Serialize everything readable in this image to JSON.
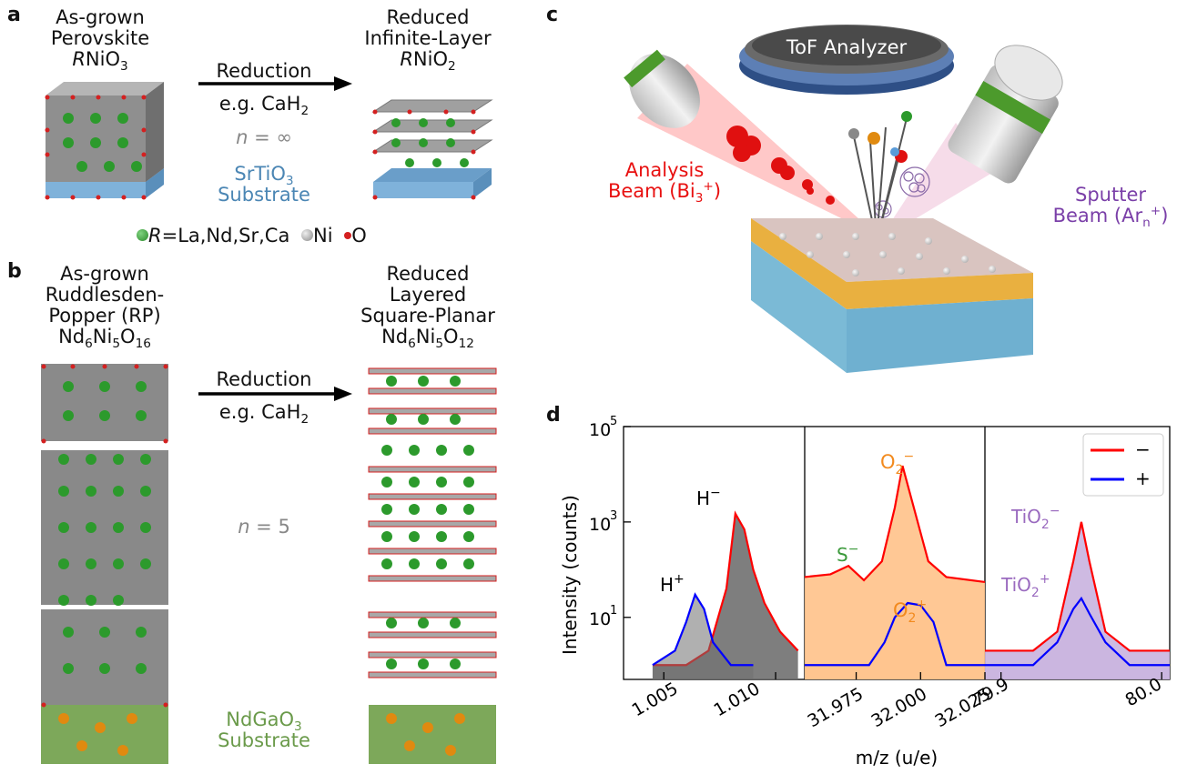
{
  "panel_a": {
    "label": "a",
    "as_grown": [
      "As-grown",
      "Perovskite"
    ],
    "as_grown_formula": {
      "r": "R",
      "main": "NiO",
      "sub": "3"
    },
    "reduced": [
      "Reduced",
      "Infinite-Layer"
    ],
    "reduced_formula": {
      "r": "R",
      "main": "NiO",
      "sub": "2"
    },
    "arrow_top": "Reduction",
    "arrow_bottom": {
      "main": "e.g. CaH",
      "sub": "2"
    },
    "n_label": {
      "n": "n",
      "rest": " = ∞"
    },
    "substrate": {
      "line1_main": "SrTiO",
      "line1_sub": "3",
      "line2": "Substrate"
    },
    "legend": {
      "r_item": "=La,Nd,Sr,Ca",
      "ni": "Ni",
      "o": "O",
      "r": "R"
    }
  },
  "panel_b": {
    "label": "b",
    "as_grown": [
      "As-grown",
      "Ruddlesden-",
      "Popper (RP)"
    ],
    "as_grown_formula": {
      "a": "Nd",
      "a_sub": "6",
      "b": "Ni",
      "b_sub": "5",
      "c": "O",
      "c_sub": "16"
    },
    "reduced": [
      "Reduced",
      "Layered",
      "Square-Planar"
    ],
    "reduced_formula": {
      "a": "Nd",
      "a_sub": "6",
      "b": "Ni",
      "b_sub": "5",
      "c": "O",
      "c_sub": "12"
    },
    "arrow_top": "Reduction",
    "arrow_bottom": {
      "main": "e.g. CaH",
      "sub": "2"
    },
    "n_label": {
      "n": "n",
      "rest": " = 5"
    },
    "substrate": {
      "line1_main": "NdGaO",
      "line1_sub": "3",
      "line2": "Substrate"
    }
  },
  "panel_c": {
    "label": "c",
    "analyzer": "ToF Analyzer",
    "analysis_beam": {
      "line1": "Analysis",
      "line2": "Beam (Bi",
      "sub": "3",
      "sup": "+",
      "end": ")"
    },
    "sputter_beam": {
      "line1": "Sputter",
      "line2": "Beam (Ar",
      "sub": "n",
      "sup": "+",
      "end": ")"
    }
  },
  "panel_d": {
    "label": "d",
    "ylabel": "Intensity (counts)",
    "xlabel": "m/z (u/e)",
    "yticks": [
      "10",
      "10",
      "10"
    ],
    "ytick_exp": [
      "5",
      "3",
      "1"
    ],
    "xticks_1": [
      "1.005",
      "1.010"
    ],
    "xticks_2": [
      "31.975",
      "32.000",
      "32.025"
    ],
    "xticks_3": [
      "79.9",
      "80.0"
    ],
    "legend": [
      "−",
      "+"
    ],
    "annotations": {
      "h_minus": "H",
      "h_minus_sup": "−",
      "h_plus": "H",
      "h_plus_sup": "+",
      "s_minus": "S",
      "s_minus_sup": "−",
      "o2_minus": "O",
      "o2_minus_sub": "2",
      "o2_minus_sup": "−",
      "o2_plus": "O",
      "o2_plus_sub": "2",
      "o2_plus_sup": "+",
      "tio2_minus": "TiO",
      "tio2_minus_sub": "2",
      "tio2_minus_sup": "−",
      "tio2_plus": "TiO",
      "tio2_plus_sub": "2",
      "tio2_plus_sup": "+"
    },
    "colors": {
      "negative": "#ff0000",
      "positive": "#0000ff",
      "h_fill": "#707070",
      "o_fill": "#ffc28a",
      "s_fill": "#8fce8f",
      "ti_fill": "#c9b3df"
    }
  },
  "chart_data": [
    {
      "type": "line",
      "title": "",
      "xlabel": "m/z (u/e)",
      "ylabel": "Intensity (counts)",
      "ylim": [
        0.5,
        100000
      ],
      "yscale": "log",
      "xlim": [
        1.0032,
        1.0113
      ],
      "series": [
        {
          "name": "−",
          "x": [
            1.0045,
            1.006,
            1.007,
            1.0078,
            1.0082,
            1.0086,
            1.009,
            1.0095,
            1.0102,
            1.011
          ],
          "values": [
            1,
            1,
            2,
            40,
            1500,
            700,
            100,
            20,
            5,
            2
          ]
        },
        {
          "name": "+",
          "x": [
            1.0045,
            1.0055,
            1.006,
            1.0064,
            1.0068,
            1.0072,
            1.008,
            1.009
          ],
          "values": [
            1,
            2,
            8,
            30,
            15,
            3,
            1,
            1
          ]
        }
      ]
    },
    {
      "type": "line",
      "title": "",
      "xlabel": "m/z (u/e)",
      "ylabel": "Intensity (counts)",
      "ylim": [
        0.5,
        100000
      ],
      "yscale": "log",
      "xlim": [
        31.955,
        32.025
      ],
      "series": [
        {
          "name": "−",
          "x": [
            31.955,
            31.965,
            31.972,
            31.978,
            31.985,
            31.99,
            31.993,
            31.998,
            32.003,
            32.01,
            32.025
          ],
          "values": [
            70,
            80,
            120,
            60,
            150,
            2000,
            15000,
            1500,
            150,
            70,
            55
          ]
        },
        {
          "name": "+",
          "x": [
            31.955,
            31.98,
            31.986,
            31.99,
            31.995,
            32.0,
            32.005,
            32.01,
            32.025
          ],
          "values": [
            1,
            1,
            3,
            10,
            20,
            18,
            8,
            1,
            1
          ]
        }
      ]
    },
    {
      "type": "line",
      "title": "",
      "xlabel": "m/z (u/e)",
      "ylabel": "Intensity (counts)",
      "ylim": [
        0.5,
        100000
      ],
      "yscale": "log",
      "xlim": [
        79.89,
        80.005
      ],
      "series": [
        {
          "name": "−",
          "x": [
            79.89,
            79.92,
            79.935,
            79.945,
            79.95,
            79.955,
            79.965,
            79.98,
            80.005
          ],
          "values": [
            2,
            2,
            5,
            150,
            1000,
            150,
            5,
            2,
            2
          ]
        },
        {
          "name": "+",
          "x": [
            79.89,
            79.92,
            79.935,
            79.945,
            79.95,
            79.955,
            79.965,
            79.98,
            80.005
          ],
          "values": [
            1,
            1,
            3,
            15,
            25,
            12,
            3,
            1,
            1
          ]
        }
      ]
    }
  ]
}
